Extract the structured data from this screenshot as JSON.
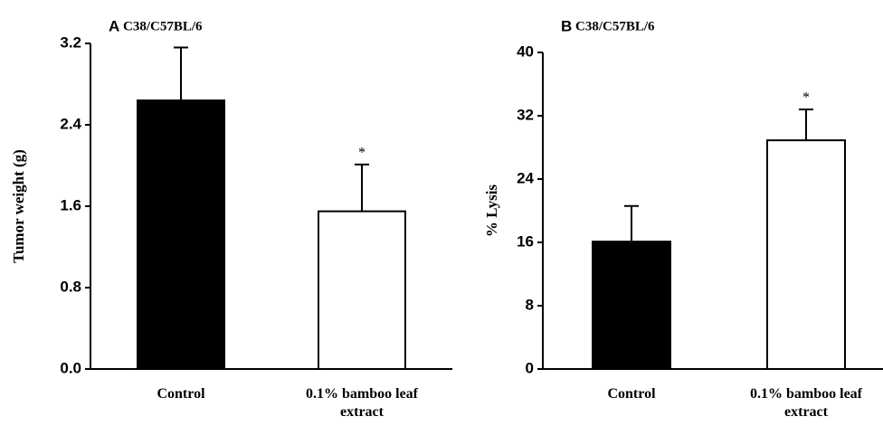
{
  "chart_data": [
    {
      "type": "bar",
      "panel_label": "A",
      "title": "C38/C57BL/6",
      "ylabel": "Tumor weight (g)",
      "categories": [
        "Control",
        "0.1% bamboo leaf extract"
      ],
      "values": [
        2.64,
        1.55
      ],
      "errors": [
        0.52,
        0.46
      ],
      "colors": [
        "#000000",
        "#ffffff"
      ],
      "significance": [
        null,
        "*"
      ],
      "ylim": [
        0,
        3.2
      ],
      "yticks": [
        {
          "value": 0,
          "label": "0.0"
        },
        {
          "value": 0.8,
          "label": "0.8"
        },
        {
          "value": 1.6,
          "label": "1.6"
        },
        {
          "value": 2.4,
          "label": "2.4"
        },
        {
          "value": 3.2,
          "label": "3.2"
        }
      ]
    },
    {
      "type": "bar",
      "panel_label": "B",
      "title": "C38/C57BL/6",
      "ylabel": "% Lysis",
      "categories": [
        "Control",
        "0.1% bamboo leaf extract"
      ],
      "values": [
        16.1,
        28.9
      ],
      "errors": [
        4.5,
        3.9
      ],
      "colors": [
        "#000000",
        "#ffffff"
      ],
      "significance": [
        null,
        "*"
      ],
      "ylim": [
        0,
        40
      ],
      "yticks": [
        0,
        8,
        16,
        24,
        32,
        40
      ]
    }
  ]
}
